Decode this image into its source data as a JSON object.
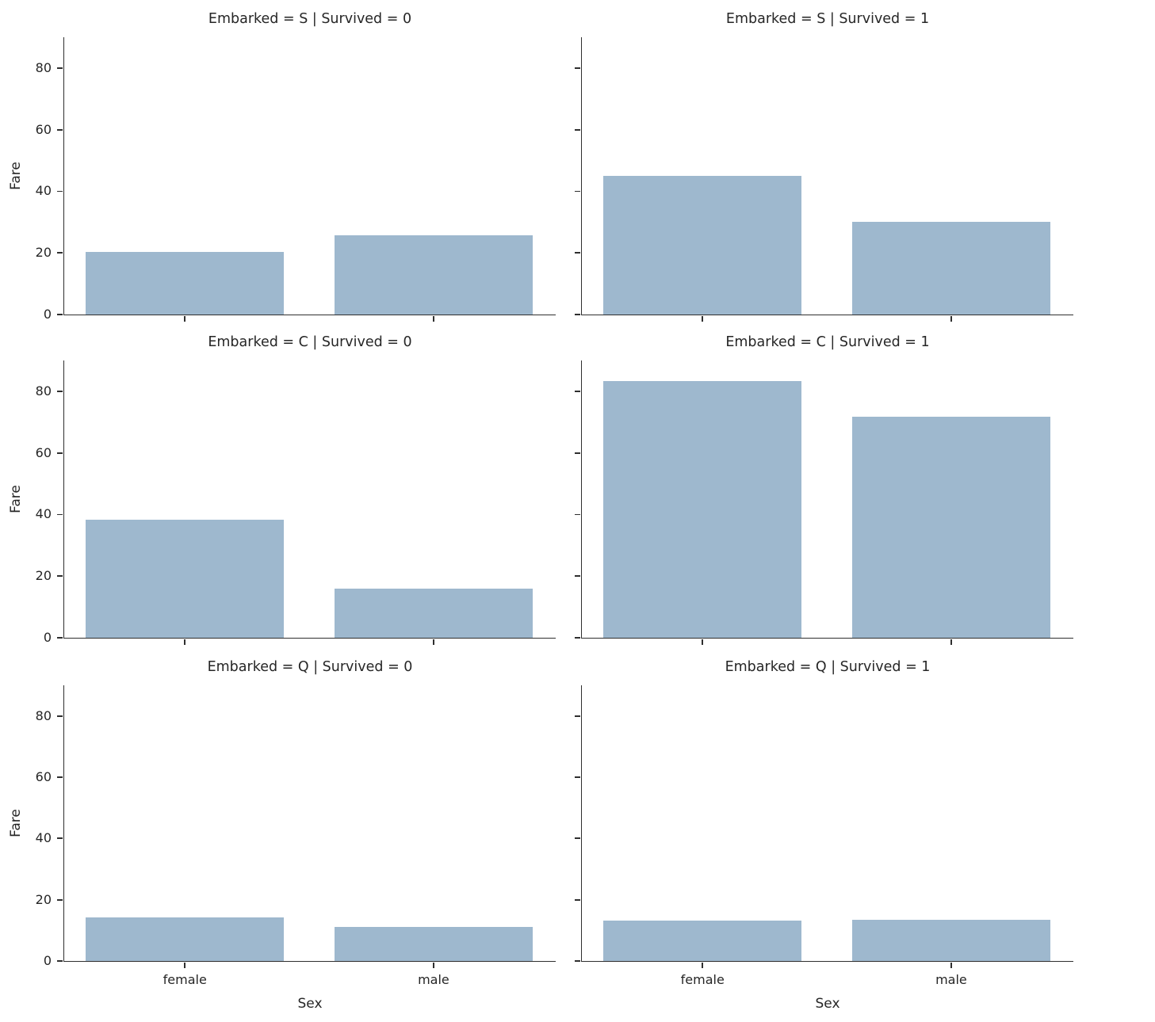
{
  "chart_data": {
    "type": "bar",
    "description": "Faceted bar chart grid (seaborn catplot style): mean Fare by Sex, faceted by Embarked (rows) and Survived (columns)",
    "categories": [
      "female",
      "male"
    ],
    "xlabel": "Sex",
    "ylabel": "Fare",
    "ylim": [
      0,
      90
    ],
    "yticks": [
      "0",
      "20",
      "40",
      "60",
      "80"
    ],
    "ytick_values": [
      0,
      20,
      40,
      60,
      80
    ],
    "grid": "off",
    "legend": "none",
    "bar_color": "#9EB8CE",
    "axis_color": "#2f2f2f",
    "text_color": "#262626",
    "facets": [
      {
        "row": 0,
        "col": 0,
        "title": "Embarked = S | Survived = 0",
        "values": [
          20.3,
          25.7
        ]
      },
      {
        "row": 0,
        "col": 1,
        "title": "Embarked = S | Survived = 1",
        "values": [
          44.9,
          30.2
        ]
      },
      {
        "row": 1,
        "col": 0,
        "title": "Embarked = C | Survived = 0",
        "values": [
          38.2,
          16.0
        ]
      },
      {
        "row": 1,
        "col": 1,
        "title": "Embarked = C | Survived = 1",
        "values": [
          83.3,
          71.7
        ]
      },
      {
        "row": 2,
        "col": 0,
        "title": "Embarked = Q | Survived = 0",
        "values": [
          14.1,
          11.2
        ]
      },
      {
        "row": 2,
        "col": 1,
        "title": "Embarked = Q | Survived = 1",
        "values": [
          13.3,
          13.4
        ]
      }
    ]
  }
}
